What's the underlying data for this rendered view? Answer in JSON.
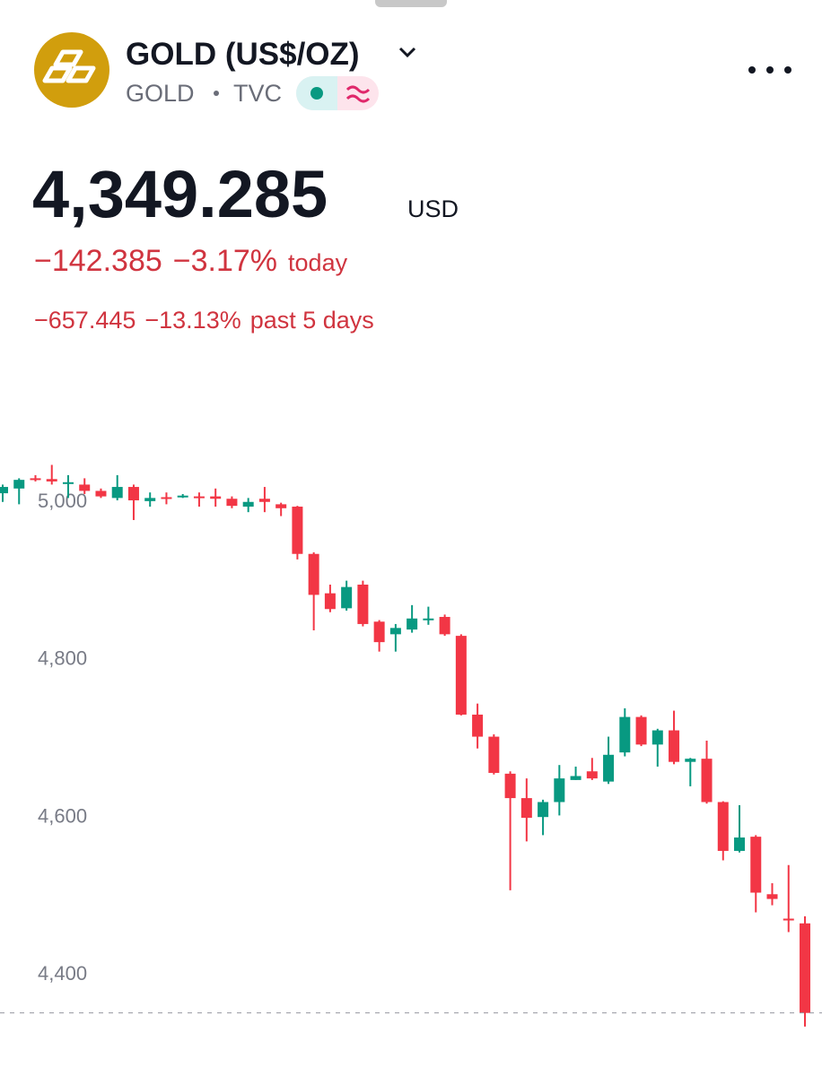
{
  "header": {
    "title": "GOLD (US$/OZ)",
    "symbol": "GOLD",
    "exchange": "TVC"
  },
  "quote": {
    "price": "4,349.285",
    "currency": "USD",
    "today": {
      "change": "−142.385",
      "percent": "−3.17%",
      "label": "today"
    },
    "week": {
      "change": "−657.445",
      "percent": "−13.13%",
      "label": "past 5 days"
    }
  },
  "chart_data": {
    "type": "candlestick",
    "open": [
      5009,
      5015,
      5028,
      5027,
      5022,
      5020,
      5012,
      5003,
      5017,
      4999,
      5004,
      5004,
      5005,
      5005,
      5002,
      4992,
      5002,
      4995,
      4992,
      4932,
      4882,
      4863,
      4893,
      4846,
      4830,
      4836,
      4848,
      4852,
      4828,
      4728,
      4700,
      4653,
      4622,
      4598,
      4617,
      4645,
      4656,
      4643,
      4680,
      4725,
      4690,
      4708,
      4668,
      4672,
      4617,
      4555,
      4573,
      4500,
      4469,
      4463
    ],
    "high": [
      5020,
      5028,
      5032,
      5045,
      5032,
      5028,
      5015,
      5032,
      5020,
      5010,
      5010,
      5008,
      5010,
      5015,
      5005,
      5003,
      5017,
      4997,
      4993,
      4934,
      4893,
      4898,
      4898,
      4848,
      4843,
      4867,
      4865,
      4855,
      4830,
      4742,
      4703,
      4656,
      4647,
      4620,
      4664,
      4662,
      4673,
      4700,
      4736,
      4727,
      4710,
      4733,
      4673,
      4695,
      4618,
      4613,
      4575,
      4514,
      4537,
      4472
    ],
    "low": [
      4998,
      4995,
      5024,
      5020,
      5003,
      5008,
      5003,
      5000,
      4975,
      4992,
      4995,
      5003,
      4992,
      4992,
      4990,
      4985,
      4985,
      4980,
      4925,
      4835,
      4858,
      4860,
      4840,
      4808,
      4808,
      4832,
      4842,
      4828,
      4727,
      4685,
      4652,
      4505,
      4567,
      4575,
      4600,
      4645,
      4645,
      4640,
      4675,
      4688,
      4662,
      4665,
      4637,
      4615,
      4543,
      4553,
      4477,
      4486,
      4452,
      4332
    ],
    "close": [
      5017,
      5026,
      5026,
      5024,
      5023,
      5012,
      5005,
      5017,
      5000,
      5003,
      5002,
      5006,
      5003,
      5002,
      4993,
      4998,
      4998,
      4990,
      4932,
      4880,
      4862,
      4890,
      4843,
      4820,
      4838,
      4850,
      4850,
      4830,
      4728,
      4700,
      4654,
      4622,
      4597,
      4617,
      4647,
      4650,
      4647,
      4677,
      4725,
      4690,
      4708,
      4668,
      4672,
      4617,
      4555,
      4572,
      4502,
      4494,
      4467,
      4349.285
    ],
    "ylim": [
      4310,
      5070
    ],
    "yticks": [
      {
        "value": 5000,
        "label": "5,000"
      },
      {
        "value": 4800,
        "label": "4,800"
      },
      {
        "value": 4600,
        "label": "4,600"
      },
      {
        "value": 4400,
        "label": "4,400"
      }
    ],
    "up_color": "#089981",
    "down_color": "#f23645"
  }
}
